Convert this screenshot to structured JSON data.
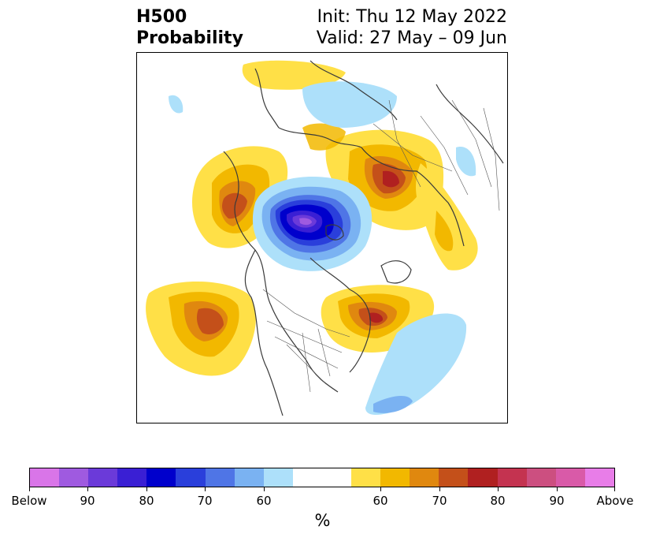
{
  "header": {
    "title_line1": "H500",
    "title_line2": "Probability",
    "init": "Init: Thu 12 May 2022",
    "valid": "Valid: 27 May – 09 Jun"
  },
  "colorbar": {
    "colors": [
      "#d975e8",
      "#9f5ae0",
      "#6b3ad9",
      "#3a1fd4",
      "#0000cc",
      "#2a3fdb",
      "#4f75e6",
      "#7ab2f2",
      "#ade0fa",
      "#ffffff",
      "#ffffff",
      "#ffe047",
      "#f2b800",
      "#e0880f",
      "#c4501a",
      "#b02020",
      "#c43350",
      "#cc4f80",
      "#d95aa8",
      "#e87de8"
    ],
    "tick_labels": [
      "Below",
      "90",
      "80",
      "70",
      "60",
      "60",
      "70",
      "80",
      "90",
      "Above"
    ],
    "unit_label": "%"
  },
  "map": {
    "projection": "north-polar-stereographic",
    "features": [
      "coastlines",
      "country-borders",
      "us-state-borders"
    ],
    "anomalies": [
      {
        "name": "alaska-pacific-trough",
        "sign": "below",
        "peak": "Below"
      },
      {
        "name": "western-russia-ridge",
        "sign": "above",
        "peak": "80"
      },
      {
        "name": "north-atlantic-ridge",
        "sign": "above",
        "peak": "70"
      },
      {
        "name": "north-pacific-ridge",
        "sign": "above",
        "peak": "70"
      },
      {
        "name": "eastern-canada-ridge",
        "sign": "above",
        "peak": "80"
      }
    ]
  }
}
